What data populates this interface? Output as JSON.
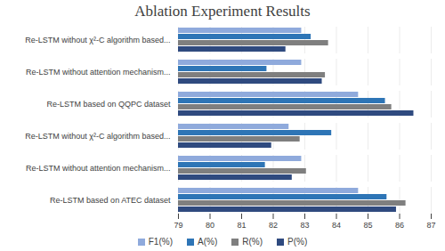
{
  "chart_data": {
    "type": "bar",
    "orientation": "horizontal",
    "title": "Ablation Experiment Results",
    "categories": [
      "Re-LSTM without χ²-C algorithm based...",
      "Re-LSTM without attention mechanism...",
      "Re-LSTM based on QQPC dataset",
      "Re-LSTM without χ²-C algorithm based...",
      "Re-LSTM without attention mechanism...",
      "Re-LSTM based on ATEC dataset"
    ],
    "series": [
      {
        "name": "F1(%)",
        "color": "#8faadc",
        "values": [
          82.9,
          82.9,
          84.7,
          82.5,
          82.9,
          84.7
        ]
      },
      {
        "name": "A(%)",
        "color": "#2e75b6",
        "values": [
          83.2,
          81.8,
          85.55,
          83.85,
          81.75,
          85.6
        ]
      },
      {
        "name": "R(%)",
        "color": "#7f7f7f",
        "values": [
          83.75,
          83.65,
          85.75,
          82.85,
          83.05,
          86.2
        ]
      },
      {
        "name": "P(%)",
        "color": "#2f4a7f",
        "values": [
          82.4,
          83.55,
          86.45,
          81.95,
          82.6,
          85.9
        ]
      }
    ],
    "xlim": [
      79,
      87
    ],
    "xticks": [
      79,
      80,
      81,
      82,
      83,
      84,
      85,
      86,
      87
    ],
    "grid": true,
    "legend": "bottom"
  }
}
